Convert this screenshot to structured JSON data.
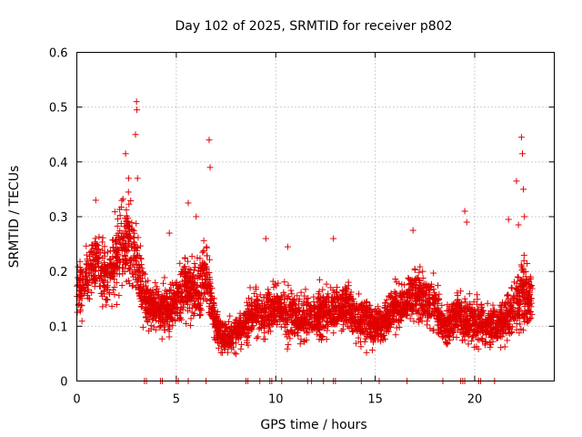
{
  "chart_data": {
    "type": "scatter",
    "title": "Day 102 of 2025, SRMTID for receiver p802",
    "xlabel": "GPS time / hours",
    "ylabel": "SRMTID / TECUs",
    "xlim": [
      0,
      24
    ],
    "ylim": [
      0,
      0.6
    ],
    "x_ticks": [
      0,
      5,
      10,
      15,
      20
    ],
    "x_tick_labels": [
      "0",
      "5",
      "10",
      "15",
      "20"
    ],
    "y_ticks": [
      0,
      0.1,
      0.2,
      0.3,
      0.4,
      0.5,
      0.6
    ],
    "y_tick_labels": [
      "0",
      "0.1",
      "0.2",
      "0.3",
      "0.4",
      "0.5",
      "0.6"
    ],
    "grid": true,
    "marker": "+",
    "color": "#e00000",
    "seed": 102,
    "point_density_per_hour": 170,
    "x_range_hours": [
      0,
      22.9
    ],
    "envelope_hours": [
      0,
      0.5,
      1,
      1.5,
      2,
      2.5,
      3,
      3.5,
      4,
      4.5,
      5,
      5.5,
      6,
      6.5,
      7,
      7.5,
      8,
      8.5,
      9,
      9.5,
      10,
      10.5,
      11,
      11.5,
      12,
      12.5,
      13,
      13.5,
      14,
      14.5,
      15,
      15.5,
      16,
      16.5,
      17,
      17.5,
      18,
      18.5,
      19,
      19.5,
      20,
      20.5,
      21,
      21.5,
      22,
      22.5,
      22.9
    ],
    "envelope_mean": [
      0.16,
      0.19,
      0.22,
      0.18,
      0.22,
      0.27,
      0.22,
      0.13,
      0.14,
      0.13,
      0.15,
      0.18,
      0.16,
      0.2,
      0.1,
      0.08,
      0.09,
      0.1,
      0.13,
      0.12,
      0.14,
      0.12,
      0.12,
      0.11,
      0.12,
      0.13,
      0.13,
      0.14,
      0.12,
      0.11,
      0.1,
      0.11,
      0.13,
      0.14,
      0.16,
      0.15,
      0.14,
      0.09,
      0.12,
      0.11,
      0.11,
      0.1,
      0.1,
      0.11,
      0.13,
      0.16,
      0.15
    ],
    "envelope_spread": [
      0.05,
      0.06,
      0.07,
      0.06,
      0.08,
      0.09,
      0.09,
      0.05,
      0.05,
      0.05,
      0.06,
      0.07,
      0.06,
      0.08,
      0.04,
      0.04,
      0.04,
      0.04,
      0.05,
      0.05,
      0.05,
      0.05,
      0.05,
      0.05,
      0.05,
      0.05,
      0.05,
      0.05,
      0.05,
      0.05,
      0.04,
      0.05,
      0.05,
      0.05,
      0.06,
      0.06,
      0.05,
      0.04,
      0.05,
      0.05,
      0.05,
      0.04,
      0.04,
      0.05,
      0.06,
      0.07,
      0.06
    ],
    "peaks": [
      {
        "x": 0.95,
        "y": 0.33
      },
      {
        "x": 2.45,
        "y": 0.415
      },
      {
        "x": 2.6,
        "y": 0.37
      },
      {
        "x": 3.0,
        "y": 0.51
      },
      {
        "x": 3.02,
        "y": 0.495
      },
      {
        "x": 2.95,
        "y": 0.45
      },
      {
        "x": 3.05,
        "y": 0.37
      },
      {
        "x": 6.65,
        "y": 0.44
      },
      {
        "x": 6.7,
        "y": 0.39
      },
      {
        "x": 5.6,
        "y": 0.325
      },
      {
        "x": 6.0,
        "y": 0.3
      },
      {
        "x": 4.65,
        "y": 0.27
      },
      {
        "x": 9.5,
        "y": 0.26
      },
      {
        "x": 10.6,
        "y": 0.245
      },
      {
        "x": 12.9,
        "y": 0.26
      },
      {
        "x": 16.9,
        "y": 0.275
      },
      {
        "x": 19.5,
        "y": 0.31
      },
      {
        "x": 19.6,
        "y": 0.29
      },
      {
        "x": 22.35,
        "y": 0.445
      },
      {
        "x": 22.4,
        "y": 0.415
      },
      {
        "x": 22.1,
        "y": 0.365
      },
      {
        "x": 22.45,
        "y": 0.35
      },
      {
        "x": 22.5,
        "y": 0.3
      },
      {
        "x": 22.2,
        "y": 0.285
      },
      {
        "x": 21.7,
        "y": 0.295
      }
    ],
    "zero_marks_hours": [
      3.4,
      3.5,
      4.2,
      4.3,
      5.0,
      5.1,
      5.6,
      6.5,
      8.5,
      8.6,
      9.2,
      9.7,
      9.8,
      10.3,
      11.6,
      11.8,
      12.4,
      12.9,
      13.0,
      14.3,
      15.2,
      16.6,
      18.4,
      19.3,
      19.4,
      19.5,
      20.2,
      20.3,
      21.0
    ]
  }
}
